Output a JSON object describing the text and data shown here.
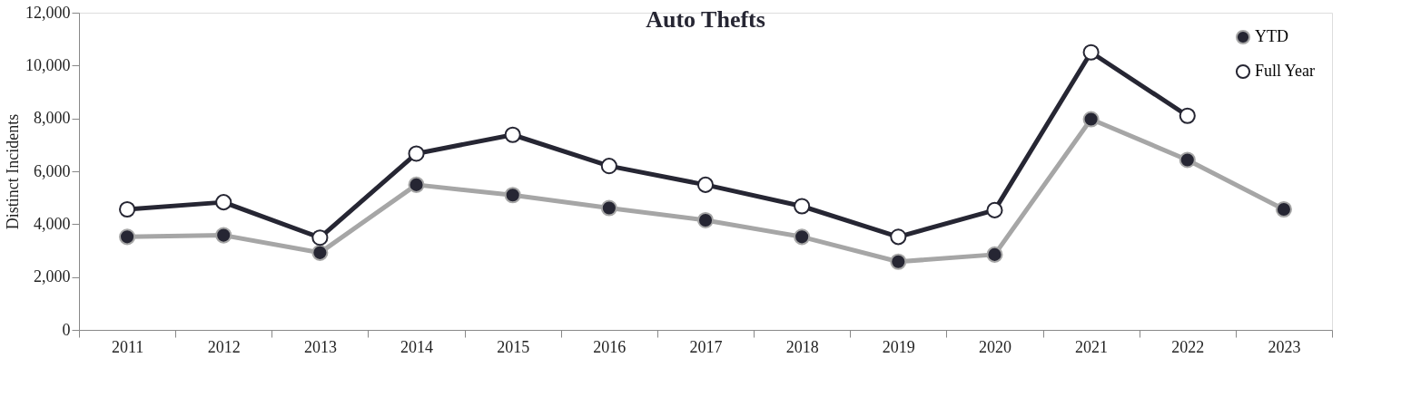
{
  "chart_data": {
    "type": "line",
    "title": "Auto Thefts",
    "ylabel": "Distinct Incidents",
    "categories": [
      "2011",
      "2012",
      "2013",
      "2014",
      "2015",
      "2016",
      "2017",
      "2018",
      "2019",
      "2020",
      "2021",
      "2022",
      "2023"
    ],
    "series": [
      {
        "name": "YTD",
        "color": "#a6a6a6",
        "values": [
          3520,
          3580,
          2920,
          5490,
          5100,
          4610,
          4150,
          3520,
          2580,
          2850,
          7970,
          6430,
          4560
        ]
      },
      {
        "name": "Full Year",
        "color": "#262633",
        "values": [
          4560,
          4830,
          3490,
          6670,
          7380,
          6200,
          5490,
          4680,
          3520,
          4530,
          10500,
          8100,
          null
        ]
      }
    ],
    "ylim": [
      0,
      12000
    ],
    "yticks": [
      {
        "value": 0,
        "label": "0"
      },
      {
        "value": 2000,
        "label": "2,000"
      },
      {
        "value": 4000,
        "label": "4,000"
      },
      {
        "value": 6000,
        "label": "6,000"
      },
      {
        "value": 8000,
        "label": "8,000"
      },
      {
        "value": 10000,
        "label": "10,000"
      },
      {
        "value": 12000,
        "label": "12,000"
      }
    ],
    "grid": false,
    "legend": "top right",
    "marker": "circle",
    "line_style": "solid"
  }
}
